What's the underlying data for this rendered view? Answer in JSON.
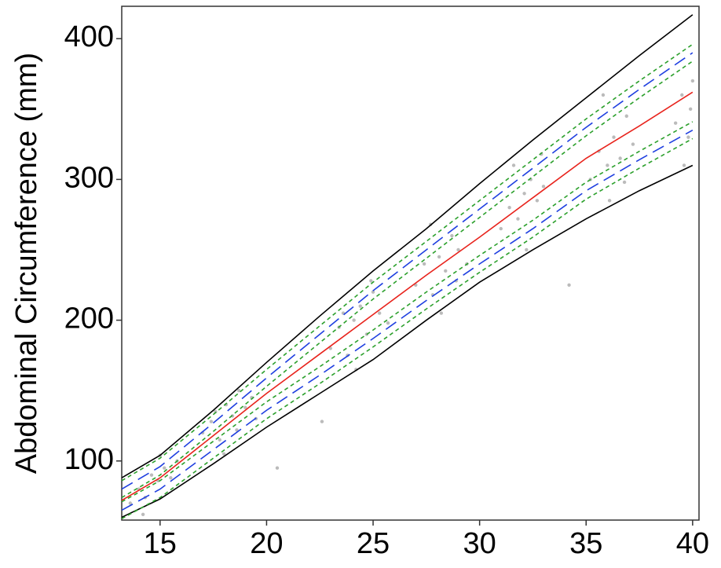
{
  "chart_data": {
    "type": "line",
    "y_label": "Abdominal Circumference (mm)",
    "xlim": [
      13.2,
      40.3
    ],
    "ylim": [
      58,
      423
    ],
    "xticks": [
      15,
      20,
      25,
      30,
      35,
      40
    ],
    "yticks": [
      100,
      200,
      300,
      400
    ],
    "x": [
      13.2,
      15,
      17.5,
      20,
      22.5,
      25,
      27.5,
      30,
      32.5,
      35,
      37.5,
      40
    ],
    "series": [
      {
        "color": "#000000",
        "dash": "solid",
        "values": [
          88,
          104,
          136,
          170,
          203,
          235,
          265,
          297,
          328,
          358,
          388,
          417
        ]
      },
      {
        "color": "#000000",
        "dash": "solid",
        "values": [
          60,
          73,
          98,
          124,
          148,
          172,
          200,
          227,
          250,
          272,
          292,
          310
        ]
      },
      {
        "color": "#2ca02c",
        "dash": "dotted",
        "values": [
          86,
          102,
          133,
          165,
          196,
          227,
          256,
          285,
          314,
          343,
          370,
          396
        ]
      },
      {
        "color": "#2ca02c",
        "dash": "dotted",
        "values": [
          74,
          90,
          121,
          153,
          184,
          215,
          244,
          273,
          302,
          331,
          358,
          384
        ]
      },
      {
        "color": "#2ca02c",
        "dash": "dotted",
        "values": [
          71,
          86,
          114,
          142,
          167,
          193,
          220,
          246,
          271,
          298,
          320,
          341
        ]
      },
      {
        "color": "#2ca02c",
        "dash": "dotted",
        "values": [
          59,
          74,
          102,
          130,
          155,
          181,
          208,
          234,
          259,
          286,
          308,
          329
        ]
      },
      {
        "color": "#1f3fe0",
        "dash": "dashed",
        "values": [
          80,
          96,
          127,
          159,
          190,
          221,
          250,
          279,
          308,
          337,
          364,
          390
        ]
      },
      {
        "color": "#1f3fe0",
        "dash": "dashed",
        "values": [
          65,
          80,
          108,
          136,
          161,
          187,
          214,
          240,
          265,
          292,
          314,
          335
        ]
      },
      {
        "color": "#e8231c",
        "dash": "solid",
        "values": [
          72,
          88,
          118,
          148,
          176,
          204,
          232,
          259,
          287,
          315,
          338,
          362
        ]
      }
    ],
    "points": {
      "color": "#bbbbbb",
      "x": [
        13.6,
        14.0,
        14.3,
        14.6,
        14.9,
        15.2,
        15.5,
        15.8,
        14.2,
        15.0,
        17.0,
        17.4,
        17.8,
        18.1,
        18.4,
        18.7,
        19.0,
        19.3,
        18.0,
        18.6,
        17.6,
        19.5,
        23.0,
        23.4,
        23.8,
        24.1,
        24.4,
        24.7,
        25.0,
        25.3,
        25.7,
        24.2,
        24.9,
        23.6,
        27.0,
        27.4,
        27.8,
        28.1,
        28.4,
        28.7,
        29.0,
        29.4,
        28.2,
        27.7,
        28.9,
        31.0,
        31.4,
        31.8,
        32.1,
        32.4,
        32.7,
        33.0,
        32.2,
        31.6,
        32.9,
        35.2,
        35.6,
        36.0,
        36.3,
        36.6,
        36.9,
        37.2,
        36.1,
        35.8,
        36.8,
        39.2,
        39.5,
        39.8,
        40.0,
        39.6,
        39.9,
        20.5,
        22.6,
        34.2
      ],
      "y": [
        70,
        80,
        74,
        90,
        86,
        95,
        88,
        100,
        62,
        104,
        120,
        128,
        115,
        140,
        132,
        150,
        138,
        145,
        105,
        122,
        135,
        130,
        180,
        195,
        175,
        200,
        210,
        190,
        220,
        205,
        198,
        165,
        228,
        205,
        225,
        240,
        218,
        245,
        235,
        260,
        250,
        240,
        205,
        268,
        228,
        265,
        280,
        272,
        290,
        300,
        285,
        295,
        250,
        310,
        318,
        300,
        320,
        310,
        330,
        315,
        345,
        325,
        285,
        360,
        298,
        340,
        360,
        330,
        370,
        310,
        350,
        95,
        128,
        225
      ]
    }
  }
}
